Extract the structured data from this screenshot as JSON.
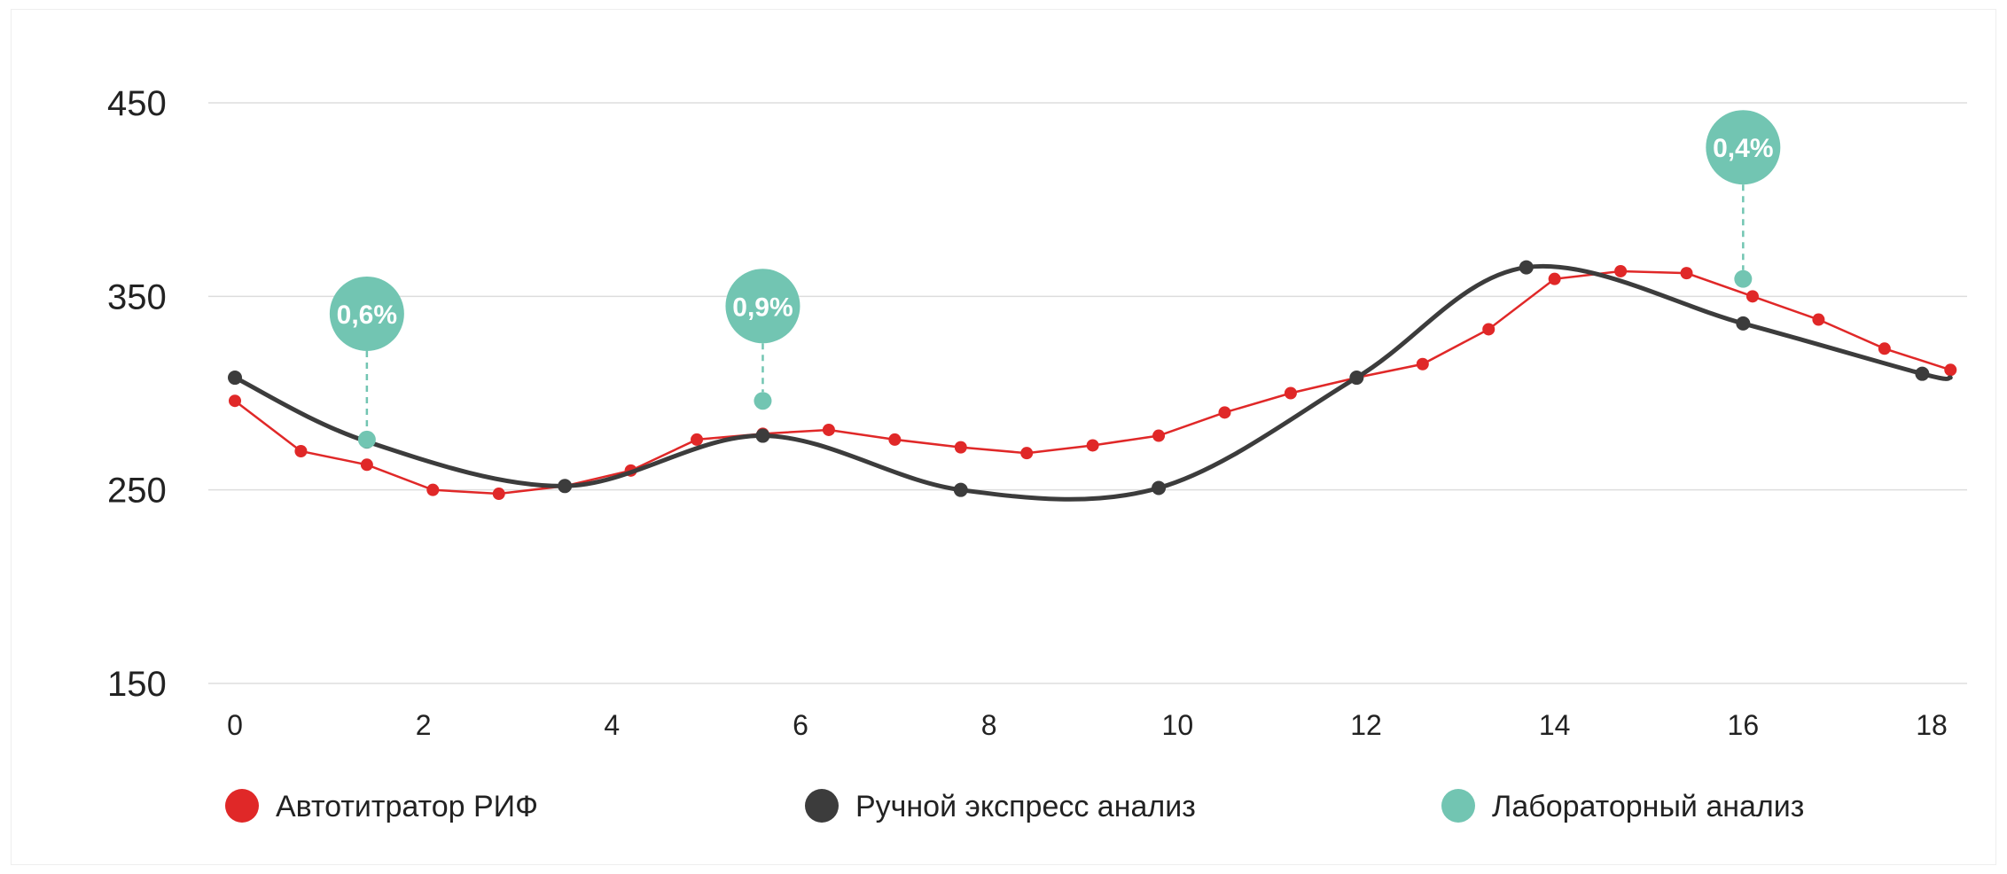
{
  "chart_data": {
    "type": "line",
    "xlim": [
      0,
      18
    ],
    "ylim": [
      150,
      450
    ],
    "x_ticks": [
      "0",
      "2",
      "4",
      "6",
      "8",
      "10",
      "12",
      "14",
      "16",
      "18"
    ],
    "y_ticks": [
      "450",
      "350",
      "250",
      "150"
    ],
    "grid": "horizontal",
    "legend_position": "bottom",
    "colors": {
      "auto": "#e02828",
      "manual": "#3c3c3c",
      "lab": "#72c5b2",
      "grid": "#dddddd"
    },
    "series": [
      {
        "name": "Автотитратор РИФ",
        "key": "auto",
        "style": "line-markers",
        "x": [
          0,
          0.7,
          1.4,
          2.1,
          2.8,
          3.5,
          4.2,
          4.9,
          5.6,
          6.3,
          7.0,
          7.7,
          8.4,
          9.1,
          9.8,
          10.5,
          11.2,
          11.9,
          12.6,
          13.3,
          14.0,
          14.7,
          15.4,
          16.1,
          16.8,
          17.5,
          18.2
        ],
        "y": [
          296,
          270,
          263,
          250,
          248,
          252,
          260,
          276,
          279,
          281,
          276,
          272,
          269,
          273,
          278,
          290,
          300,
          308,
          315,
          333,
          359,
          363,
          362,
          350,
          338,
          323,
          312
        ]
      },
      {
        "name": "Ручной экспресс анализ",
        "key": "manual",
        "style": "smooth",
        "x": [
          0,
          1.4,
          3.5,
          5.6,
          7.7,
          9.8,
          11.9,
          13.7,
          16.0,
          17.9
        ],
        "y": [
          308,
          275,
          252,
          278,
          250,
          251,
          308,
          365,
          336,
          310
        ],
        "end_x": 18.2,
        "end_y": 308
      },
      {
        "name": "Лабораторный анализ",
        "key": "lab",
        "style": "points",
        "x": [
          1.4,
          5.6,
          16.0
        ],
        "y": [
          276,
          296,
          359
        ],
        "annotations": [
          "0,6%",
          "0,9%",
          "0,4%"
        ],
        "annotation_y": [
          341,
          345,
          427
        ]
      }
    ],
    "legend": [
      "Автотитратор РИФ",
      "Ручной экспресс анализ",
      "Лабораторный анализ"
    ]
  }
}
